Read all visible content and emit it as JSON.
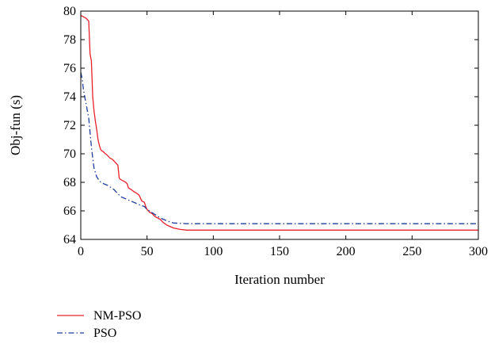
{
  "chart_data": {
    "type": "line",
    "title": "",
    "xlabel": "Iteration number",
    "ylabel": "Obj-fun (s)",
    "xlim": [
      0,
      300
    ],
    "ylim": [
      64,
      80
    ],
    "xticks": [
      0,
      50,
      100,
      150,
      200,
      250,
      300
    ],
    "yticks": [
      64,
      66,
      68,
      70,
      72,
      74,
      76,
      78,
      80
    ],
    "grid": false,
    "legend": "bottom-left, below plot",
    "series": [
      {
        "name": "NM-PSO",
        "color": "#e8202a",
        "style": "solid",
        "x": [
          0,
          2,
          4,
          6,
          7,
          8,
          9,
          10,
          11,
          12,
          13,
          14,
          15,
          16,
          17,
          18,
          20,
          22,
          24,
          26,
          27,
          28,
          29,
          30,
          32,
          34,
          35,
          36,
          38,
          40,
          42,
          44,
          45,
          46,
          48,
          49,
          50,
          51,
          52,
          54,
          56,
          58,
          60,
          62,
          65,
          70,
          75,
          80,
          100,
          150,
          200,
          250,
          300
        ],
        "y": [
          79.7,
          79.6,
          79.5,
          79.3,
          77.0,
          76.5,
          74.0,
          73.0,
          72.3,
          71.7,
          71.0,
          70.6,
          70.3,
          70.2,
          70.15,
          70.05,
          69.9,
          69.7,
          69.6,
          69.4,
          69.3,
          69.2,
          68.3,
          68.2,
          68.1,
          68.0,
          67.9,
          67.6,
          67.5,
          67.35,
          67.25,
          67.1,
          66.9,
          66.7,
          66.6,
          66.3,
          66.1,
          66.0,
          65.9,
          65.8,
          65.6,
          65.5,
          65.4,
          65.2,
          65.0,
          64.8,
          64.7,
          64.65,
          64.65,
          64.65,
          64.65,
          64.65,
          64.65
        ]
      },
      {
        "name": "PSO",
        "color": "#1f3f9c",
        "style": "dashdot",
        "x": [
          0,
          1,
          2,
          3,
          4,
          5,
          6,
          7,
          8,
          9,
          10,
          12,
          14,
          16,
          20,
          25,
          30,
          35,
          40,
          45,
          48,
          50,
          55,
          60,
          65,
          70,
          80,
          100,
          150,
          200,
          250,
          300
        ],
        "y": [
          75.7,
          75.3,
          74.5,
          74.0,
          73.5,
          73.0,
          72.5,
          71.5,
          70.5,
          69.7,
          69.0,
          68.4,
          68.1,
          67.95,
          67.8,
          67.5,
          67.0,
          66.8,
          66.6,
          66.4,
          66.3,
          66.1,
          65.8,
          65.5,
          65.3,
          65.15,
          65.1,
          65.1,
          65.1,
          65.1,
          65.1,
          65.1
        ]
      }
    ]
  }
}
